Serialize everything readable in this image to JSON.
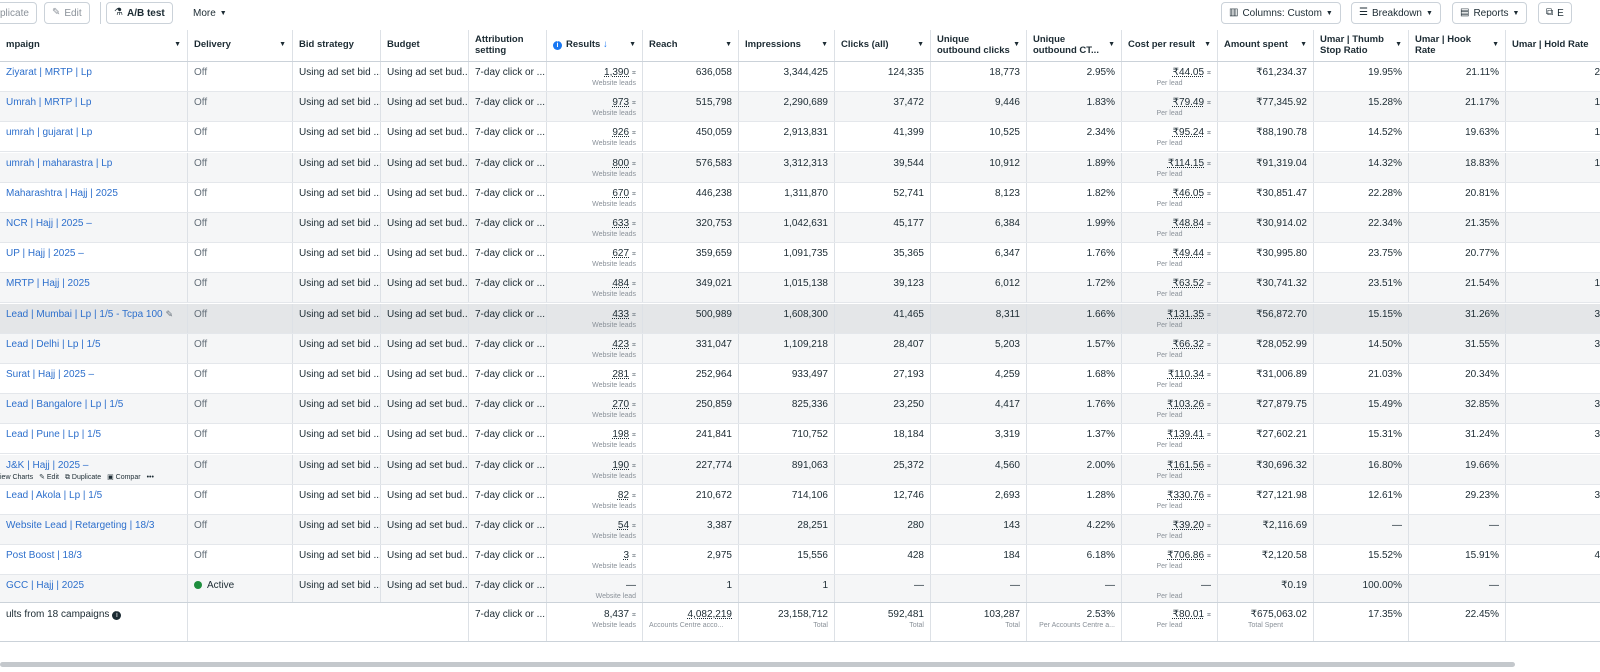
{
  "toolbar": {
    "duplicate": "plicate",
    "edit": "Edit",
    "ab_test": "A/B test",
    "more": "More",
    "columns": "Columns: Custom",
    "breakdown": "Breakdown",
    "reports": "Reports",
    "export_partial": "E"
  },
  "columns": {
    "campaign": "mpaign",
    "delivery": "Delivery",
    "bid_strategy": "Bid strategy",
    "budget": "Budget",
    "attribution": "Attribution setting",
    "results": "Results",
    "reach": "Reach",
    "impressions": "Impressions",
    "clicks": "Clicks (all)",
    "unique_outbound": "Unique outbound clicks",
    "unique_ctr": "Unique outbound CT...",
    "cpr": "Cost per result",
    "amount": "Amount spent",
    "thumb": "Umar | Thumb Stop Ratio",
    "hook": "Umar | Hook Rate",
    "hold": "Umar | Hold Rate"
  },
  "rows": [
    {
      "name": "Ziyarat | MRTP | Lp",
      "delivery": "Off",
      "bid": "Using ad set bid ...",
      "budget": "Using ad set bud...",
      "attr": "7-day click or ...",
      "results": "1,390",
      "results_sub": "Website leads",
      "reach": "636,058",
      "impr": "3,344,425",
      "clicks": "124,335",
      "uoc": "18,773",
      "ctr": "2.95%",
      "cpr": "₹44.05",
      "cpr_sub": "Per lead",
      "amount": "₹61,234.37",
      "thumb": "19.95%",
      "hook": "21.11%",
      "hold": "2"
    },
    {
      "name": "Umrah | MRTP | Lp",
      "delivery": "Off",
      "bid": "Using ad set bid ...",
      "budget": "Using ad set bud...",
      "attr": "7-day click or ...",
      "results": "973",
      "results_sub": "Website leads",
      "reach": "515,798",
      "impr": "2,290,689",
      "clicks": "37,472",
      "uoc": "9,446",
      "ctr": "1.83%",
      "cpr": "₹79.49",
      "cpr_sub": "Per lead",
      "amount": "₹77,345.92",
      "thumb": "15.28%",
      "hook": "21.17%",
      "hold": "1"
    },
    {
      "name": "umrah | gujarat | Lp",
      "delivery": "Off",
      "bid": "Using ad set bid ...",
      "budget": "Using ad set bud...",
      "attr": "7-day click or ...",
      "results": "926",
      "results_sub": "Website leads",
      "reach": "450,059",
      "impr": "2,913,831",
      "clicks": "41,399",
      "uoc": "10,525",
      "ctr": "2.34%",
      "cpr": "₹95.24",
      "cpr_sub": "Per lead",
      "amount": "₹88,190.78",
      "thumb": "14.52%",
      "hook": "19.63%",
      "hold": "1"
    },
    {
      "name": "umrah | maharastra | Lp",
      "delivery": "Off",
      "bid": "Using ad set bid ...",
      "budget": "Using ad set bud...",
      "attr": "7-day click or ...",
      "results": "800",
      "results_sub": "Website leads",
      "reach": "576,583",
      "impr": "3,312,313",
      "clicks": "39,544",
      "uoc": "10,912",
      "ctr": "1.89%",
      "cpr": "₹114.15",
      "cpr_sub": "Per lead",
      "amount": "₹91,319.04",
      "thumb": "14.32%",
      "hook": "18.83%",
      "hold": "1"
    },
    {
      "name": "Maharashtra | Hajj | 2025",
      "delivery": "Off",
      "bid": "Using ad set bid ...",
      "budget": "Using ad set bud...",
      "attr": "7-day click or ...",
      "results": "670",
      "results_sub": "Website leads",
      "reach": "446,238",
      "impr": "1,311,870",
      "clicks": "52,741",
      "uoc": "8,123",
      "ctr": "1.82%",
      "cpr": "₹46.05",
      "cpr_sub": "Per lead",
      "amount": "₹30,851.47",
      "thumb": "22.28%",
      "hook": "20.81%",
      "hold": ""
    },
    {
      "name": "NCR | Hajj | 2025 –",
      "delivery": "Off",
      "bid": "Using ad set bid ...",
      "budget": "Using ad set bud...",
      "attr": "7-day click or ...",
      "results": "633",
      "results_sub": "Website leads",
      "reach": "320,753",
      "impr": "1,042,631",
      "clicks": "45,177",
      "uoc": "6,384",
      "ctr": "1.99%",
      "cpr": "₹48.84",
      "cpr_sub": "Per lead",
      "amount": "₹30,914.02",
      "thumb": "22.34%",
      "hook": "21.35%",
      "hold": ""
    },
    {
      "name": "UP | Hajj | 2025 –",
      "delivery": "Off",
      "bid": "Using ad set bid ...",
      "budget": "Using ad set bud...",
      "attr": "7-day click or ...",
      "results": "627",
      "results_sub": "Website leads",
      "reach": "359,659",
      "impr": "1,091,735",
      "clicks": "35,365",
      "uoc": "6,347",
      "ctr": "1.76%",
      "cpr": "₹49.44",
      "cpr_sub": "Per lead",
      "amount": "₹30,995.80",
      "thumb": "23.75%",
      "hook": "20.77%",
      "hold": ""
    },
    {
      "name": "MRTP | Hajj | 2025",
      "delivery": "Off",
      "bid": "Using ad set bid ...",
      "budget": "Using ad set bud...",
      "attr": "7-day click or ...",
      "results": "484",
      "results_sub": "Website leads",
      "reach": "349,021",
      "impr": "1,015,138",
      "clicks": "39,123",
      "uoc": "6,012",
      "ctr": "1.72%",
      "cpr": "₹63.52",
      "cpr_sub": "Per lead",
      "amount": "₹30,741.32",
      "thumb": "23.51%",
      "hook": "21.54%",
      "hold": "1"
    },
    {
      "name": "Lead | Mumbai | Lp | 1/5 - Tcpa 100",
      "delivery": "Off",
      "bid": "Using ad set bid ...",
      "budget": "Using ad set bud...",
      "attr": "7-day click or ...",
      "results": "433",
      "results_sub": "Website leads",
      "reach": "500,989",
      "impr": "1,608,300",
      "clicks": "41,465",
      "uoc": "8,311",
      "ctr": "1.66%",
      "cpr": "₹131.35",
      "cpr_sub": "Per lead",
      "amount": "₹56,872.70",
      "thumb": "15.15%",
      "hook": "31.26%",
      "hold": "3"
    },
    {
      "name": "Lead | Delhi | Lp | 1/5",
      "delivery": "Off",
      "bid": "Using ad set bid ...",
      "budget": "Using ad set bud...",
      "attr": "7-day click or ...",
      "results": "423",
      "results_sub": "Website leads",
      "reach": "331,047",
      "impr": "1,109,218",
      "clicks": "28,407",
      "uoc": "5,203",
      "ctr": "1.57%",
      "cpr": "₹66.32",
      "cpr_sub": "Per lead",
      "amount": "₹28,052.99",
      "thumb": "14.50%",
      "hook": "31.55%",
      "hold": "3"
    },
    {
      "name": "Surat | Hajj | 2025 –",
      "delivery": "Off",
      "bid": "Using ad set bid ...",
      "budget": "Using ad set bud...",
      "attr": "7-day click or ...",
      "results": "281",
      "results_sub": "Website leads",
      "reach": "252,964",
      "impr": "933,497",
      "clicks": "27,193",
      "uoc": "4,259",
      "ctr": "1.68%",
      "cpr": "₹110.34",
      "cpr_sub": "Per lead",
      "amount": "₹31,006.89",
      "thumb": "21.03%",
      "hook": "20.34%",
      "hold": ""
    },
    {
      "name": "Lead | Bangalore | Lp | 1/5",
      "delivery": "Off",
      "bid": "Using ad set bid ...",
      "budget": "Using ad set bud...",
      "attr": "7-day click or ...",
      "results": "270",
      "results_sub": "Website leads",
      "reach": "250,859",
      "impr": "825,336",
      "clicks": "23,250",
      "uoc": "4,417",
      "ctr": "1.76%",
      "cpr": "₹103.26",
      "cpr_sub": "Per lead",
      "amount": "₹27,879.75",
      "thumb": "15.49%",
      "hook": "32.85%",
      "hold": "3"
    },
    {
      "name": "Lead | Pune | Lp | 1/5",
      "delivery": "Off",
      "bid": "Using ad set bid ...",
      "budget": "Using ad set bud...",
      "attr": "7-day click or ...",
      "results": "198",
      "results_sub": "Website leads",
      "reach": "241,841",
      "impr": "710,752",
      "clicks": "18,184",
      "uoc": "3,319",
      "ctr": "1.37%",
      "cpr": "₹139.41",
      "cpr_sub": "Per lead",
      "amount": "₹27,602.21",
      "thumb": "15.31%",
      "hook": "31.24%",
      "hold": "3"
    },
    {
      "name": "J&K | Hajj | 2025 –",
      "delivery": "Off",
      "bid": "Using ad set bid ...",
      "budget": "Using ad set bud...",
      "attr": "7-day click or ...",
      "results": "190",
      "results_sub": "Website leads",
      "reach": "227,774",
      "impr": "891,063",
      "clicks": "25,372",
      "uoc": "4,560",
      "ctr": "2.00%",
      "cpr": "₹161.56",
      "cpr_sub": "Per lead",
      "amount": "₹30,696.32",
      "thumb": "16.80%",
      "hook": "19.66%",
      "hold": ""
    },
    {
      "name": "Lead | Akola | Lp | 1/5",
      "delivery": "Off",
      "bid": "Using ad set bid ...",
      "budget": "Using ad set bud...",
      "attr": "7-day click or ...",
      "results": "82",
      "results_sub": "Website leads",
      "reach": "210,672",
      "impr": "714,106",
      "clicks": "12,746",
      "uoc": "2,693",
      "ctr": "1.28%",
      "cpr": "₹330.76",
      "cpr_sub": "Per lead",
      "amount": "₹27,121.98",
      "thumb": "12.61%",
      "hook": "29.23%",
      "hold": "3"
    },
    {
      "name": "Website Lead | Retargeting | 18/3",
      "delivery": "Off",
      "bid": "Using ad set bid ...",
      "budget": "Using ad set bud...",
      "attr": "7-day click or ...",
      "results": "54",
      "results_sub": "Website leads",
      "reach": "3,387",
      "impr": "28,251",
      "clicks": "280",
      "uoc": "143",
      "ctr": "4.22%",
      "cpr": "₹39.20",
      "cpr_sub": "Per lead",
      "amount": "₹2,116.69",
      "thumb": "—",
      "hook": "—",
      "hold": ""
    },
    {
      "name": "Post Boost | 18/3",
      "delivery": "Off",
      "bid": "Using ad set bid ...",
      "budget": "Using ad set bud...",
      "attr": "7-day click or ...",
      "results": "3",
      "results_sub": "Website leads",
      "reach": "2,975",
      "impr": "15,556",
      "clicks": "428",
      "uoc": "184",
      "ctr": "6.18%",
      "cpr": "₹706.86",
      "cpr_sub": "Per lead",
      "amount": "₹2,120.58",
      "thumb": "15.52%",
      "hook": "15.91%",
      "hold": "4"
    },
    {
      "name": "GCC | Hajj | 2025",
      "delivery": "Active",
      "bid": "Using ad set bid ...",
      "budget": "Using ad set bud...",
      "attr": "7-day click or ...",
      "results": "—",
      "results_sub": "Website lead",
      "reach": "1",
      "impr": "1",
      "clicks": "—",
      "uoc": "—",
      "ctr": "—",
      "cpr": "—",
      "cpr_sub": "Per lead",
      "amount": "₹0.19",
      "thumb": "100.00%",
      "hook": "—",
      "hold": ""
    }
  ],
  "hover_actions": {
    "view_charts": "iew Charts",
    "edit": "Edit",
    "duplicate": "Duplicate",
    "compare": "Compar"
  },
  "footer": {
    "label": "ults from 18 campaigns",
    "attr": "7-day click or ...",
    "results": "8,437",
    "results_sub": "Website leads",
    "reach": "4,082,219",
    "reach_sub": "Accounts Centre acco...",
    "impr": "23,158,712",
    "impr_sub": "Total",
    "clicks": "592,481",
    "clicks_sub": "Total",
    "uoc": "103,287",
    "uoc_sub": "Total",
    "ctr": "2.53%",
    "ctr_sub": "Per Accounts Centre a...",
    "cpr": "₹80.01",
    "cpr_sub": "Per lead",
    "amount": "₹675,063.02",
    "amount_sub": "Total Spent",
    "thumb": "17.35%",
    "hook": "22.45%"
  },
  "colors": {
    "link": "#2d6fcc",
    "active": "#1e8e3e",
    "accent": "#1877f2"
  }
}
